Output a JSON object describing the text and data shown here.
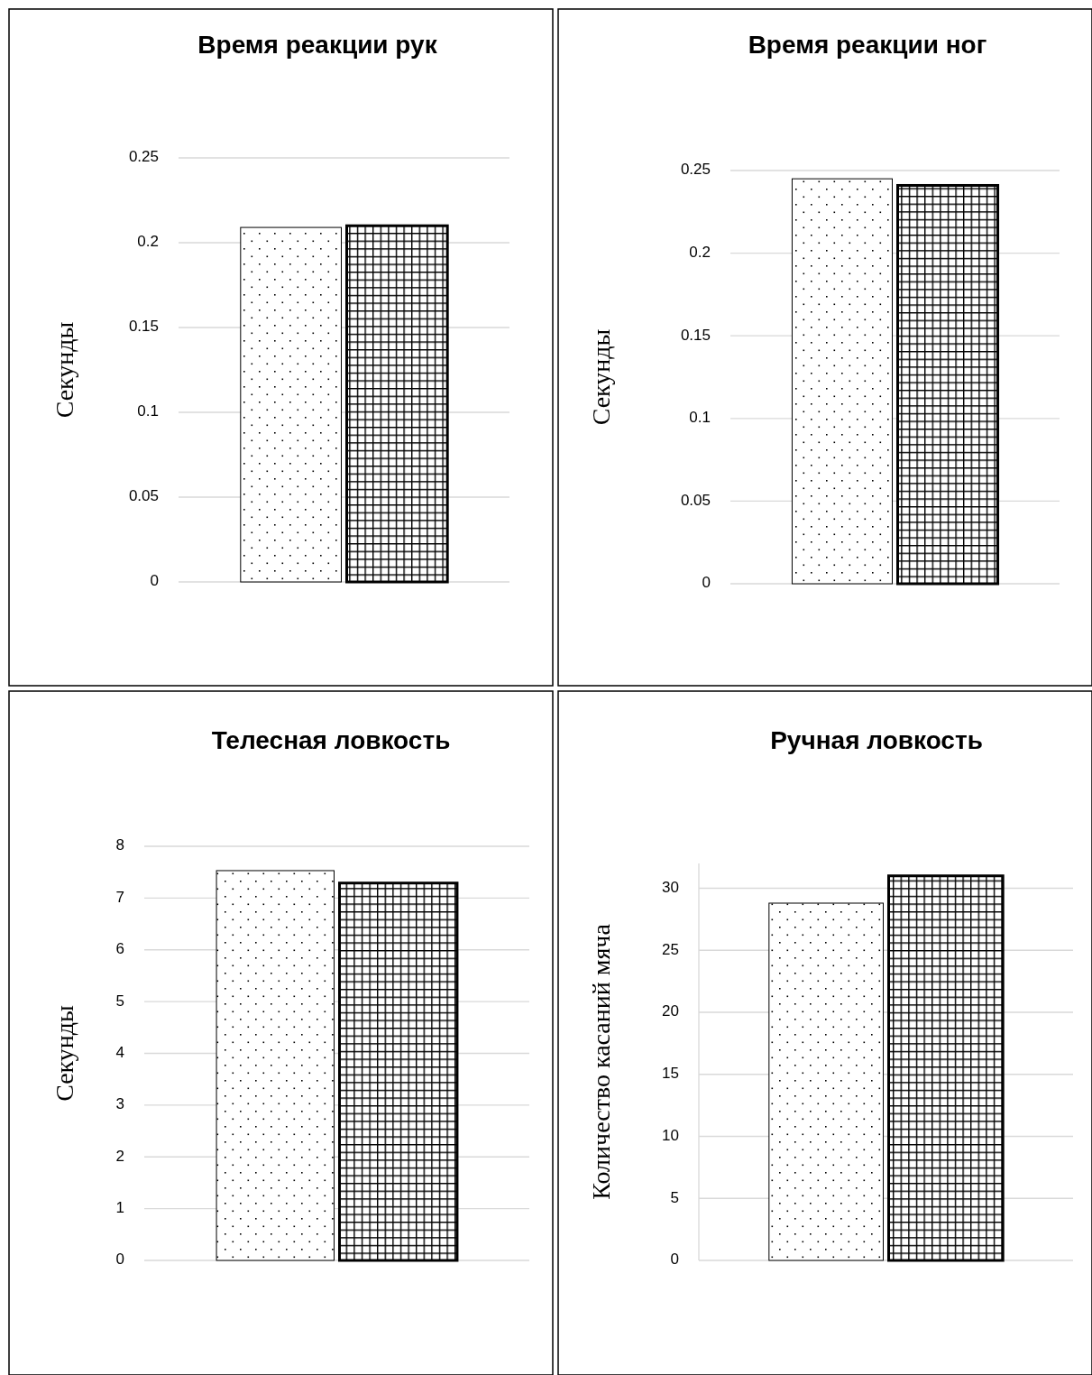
{
  "chart_data": [
    {
      "type": "bar",
      "title": "Время реакции рук",
      "ylabel": "Секунды",
      "categories": [
        null
      ],
      "series": [
        {
          "color": "#000000",
          "values": [
            0.209
          ]
        },
        {
          "color": "#000000",
          "values": [
            0.21
          ]
        }
      ],
      "ylim": [
        0,
        0.25
      ],
      "yticks": [
        0,
        0.05,
        0.1,
        0.15,
        0.2,
        0.25
      ],
      "grid": "y"
    },
    {
      "type": "bar",
      "title": "Время реакции ног",
      "ylabel": "Секунды",
      "categories": [
        null
      ],
      "series": [
        {
          "color": "#000000",
          "values": [
            0.245
          ]
        },
        {
          "color": "#000000",
          "values": [
            0.241
          ]
        }
      ],
      "ylim": [
        0,
        0.25
      ],
      "yticks": [
        0,
        0.05,
        0.1,
        0.15,
        0.2,
        0.25
      ],
      "grid": "y"
    },
    {
      "type": "bar",
      "title": "Телесная ловкость",
      "ylabel": "Секунды",
      "categories": [
        null
      ],
      "series": [
        {
          "color": "#000000",
          "values": [
            7.53
          ]
        },
        {
          "color": "#000000",
          "values": [
            7.29
          ]
        }
      ],
      "ylim": [
        0,
        8
      ],
      "yticks": [
        0,
        1,
        2,
        3,
        4,
        5,
        6,
        7,
        8
      ],
      "grid": "y"
    },
    {
      "type": "bar",
      "title": "Ручная ловкость",
      "ylabel": "Количество касаний мяча",
      "categories": [
        null
      ],
      "series": [
        {
          "color": "#000000",
          "values": [
            28.8
          ]
        },
        {
          "color": "#000000",
          "values": [
            31
          ]
        }
      ],
      "ylim": [
        0,
        32
      ],
      "yticks": [
        0,
        5,
        10,
        15,
        20,
        25,
        30
      ],
      "grid": "y"
    }
  ]
}
